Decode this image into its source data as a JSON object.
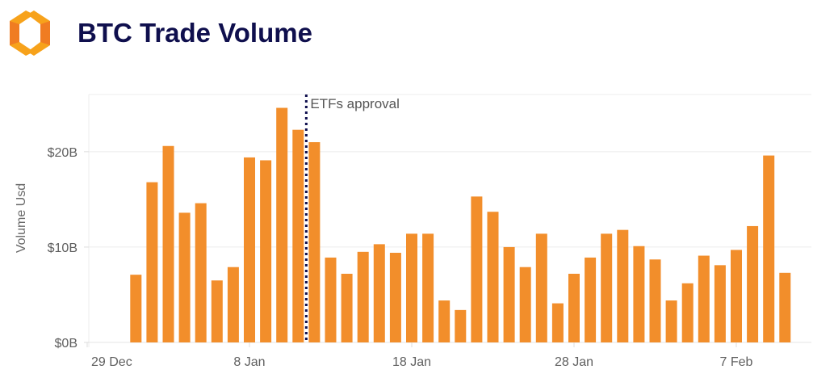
{
  "header": {
    "title": "BTC Trade Volume",
    "logo_icon": "orange-hexagon-brackets-logo"
  },
  "chart_data": {
    "type": "bar",
    "title": "BTC Trade Volume",
    "xlabel": "",
    "ylabel": "Volume Usd",
    "ylim": [
      0,
      26
    ],
    "yticks": [
      {
        "value": 0,
        "label": "$0B"
      },
      {
        "value": 10,
        "label": "$10B"
      },
      {
        "value": 20,
        "label": "$20B"
      }
    ],
    "xlim": [
      "2023-12-29",
      "2024-02-12"
    ],
    "xticks": [
      {
        "date": "2023-12-29",
        "label": "29 Dec"
      },
      {
        "date": "2024-01-08",
        "label": "8 Jan"
      },
      {
        "date": "2024-01-18",
        "label": "18 Jan"
      },
      {
        "date": "2024-01-28",
        "label": "28 Jan"
      },
      {
        "date": "2024-02-07",
        "label": "7 Feb"
      }
    ],
    "grid": true,
    "bar_color": "#f28e2b",
    "unit": "billion USD",
    "categories": [
      "2024-01-01",
      "2024-01-02",
      "2024-01-03",
      "2024-01-04",
      "2024-01-05",
      "2024-01-06",
      "2024-01-07",
      "2024-01-08",
      "2024-01-09",
      "2024-01-10",
      "2024-01-11",
      "2024-01-12",
      "2024-01-13",
      "2024-01-14",
      "2024-01-15",
      "2024-01-16",
      "2024-01-17",
      "2024-01-18",
      "2024-01-19",
      "2024-01-20",
      "2024-01-21",
      "2024-01-22",
      "2024-01-23",
      "2024-01-24",
      "2024-01-25",
      "2024-01-26",
      "2024-01-27",
      "2024-01-28",
      "2024-01-29",
      "2024-01-30",
      "2024-01-31",
      "2024-02-01",
      "2024-02-02",
      "2024-02-03",
      "2024-02-04",
      "2024-02-05",
      "2024-02-06",
      "2024-02-07",
      "2024-02-08",
      "2024-02-09",
      "2024-02-10"
    ],
    "values": [
      7.1,
      16.8,
      20.6,
      13.6,
      14.6,
      6.5,
      7.9,
      19.4,
      19.1,
      24.6,
      22.3,
      21.0,
      8.9,
      7.2,
      9.5,
      10.3,
      9.4,
      11.4,
      11.4,
      4.4,
      3.4,
      15.3,
      13.7,
      10.0,
      7.9,
      11.4,
      4.1,
      7.2,
      8.9,
      11.4,
      11.8,
      10.1,
      8.7,
      4.4,
      6.2,
      9.1,
      8.1,
      9.7,
      12.2,
      19.6,
      7.3
    ],
    "annotation": {
      "label": "ETFs approval",
      "date": "2024-01-11T12:00",
      "style": "dotted",
      "color": "#0f0f4d"
    }
  }
}
